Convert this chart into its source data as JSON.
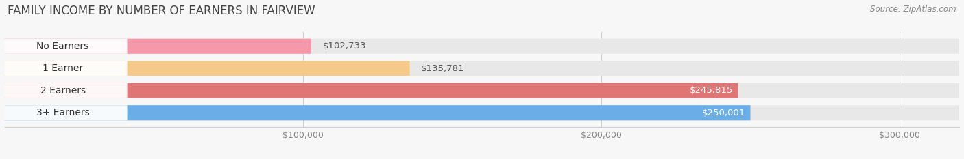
{
  "title": "FAMILY INCOME BY NUMBER OF EARNERS IN FAIRVIEW",
  "source": "Source: ZipAtlas.com",
  "categories": [
    "No Earners",
    "1 Earner",
    "2 Earners",
    "3+ Earners"
  ],
  "values": [
    102733,
    135781,
    245815,
    250001
  ],
  "bar_colors": [
    "#f598aa",
    "#f5c98a",
    "#e07575",
    "#6aaee8"
  ],
  "label_colors": [
    "#333333",
    "#333333",
    "#333333",
    "#333333"
  ],
  "value_label_colors_inside": [
    "#ffffff",
    "#ffffff",
    "#ffffff",
    "#ffffff"
  ],
  "value_label_colors_outside": [
    "#555555",
    "#555555",
    "#ffffff",
    "#ffffff"
  ],
  "xlim_min": 0,
  "xlim_max": 320000,
  "xticks": [
    100000,
    200000,
    300000
  ],
  "xtick_labels": [
    "$100,000",
    "$200,000",
    "$300,000"
  ],
  "bg_color": "#f7f7f7",
  "bar_bg_color": "#e8e8e8",
  "label_fontsize": 10,
  "value_fontsize": 9.5,
  "title_fontsize": 12,
  "figsize": [
    14.06,
    2.33
  ],
  "dpi": 100,
  "bar_height": 0.68,
  "value_threshold": 180000
}
